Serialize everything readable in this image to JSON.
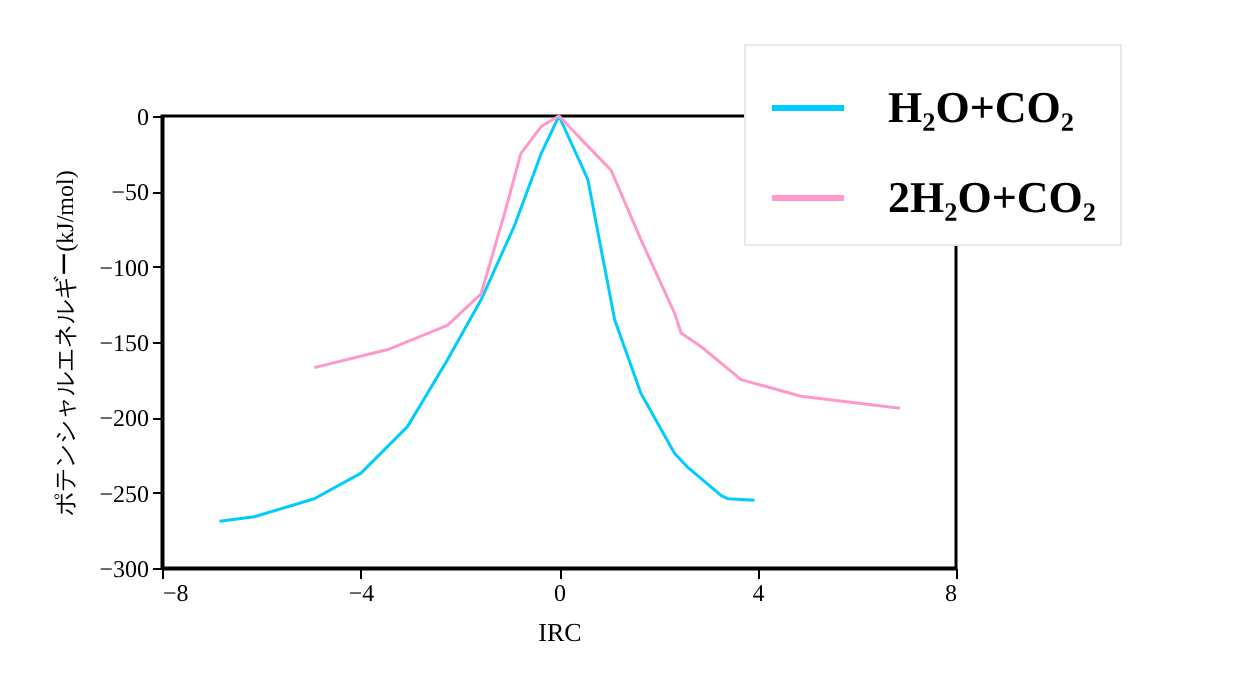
{
  "chart_data": {
    "type": "line",
    "xlabel": "IRC",
    "ylabel": "ポテンシャルエネルギー(kJ/mol)",
    "xlim": [
      -8,
      8
    ],
    "xticks": [
      -8,
      -4,
      0,
      4,
      8
    ],
    "ylim": [
      -300,
      0
    ],
    "yticks": [
      -300,
      -250,
      -200,
      -150,
      -100,
      -50,
      0
    ],
    "grid": false,
    "legend": "top right",
    "marker": "none",
    "line_style": "solid",
    "series": [
      {
        "name": "H₂O+CO₂",
        "color": "#00ccff",
        "x": [
          -6.84,
          -6.14,
          -4.93,
          -3.99,
          -3.05,
          -2.25,
          -1.57,
          -0.9,
          -0.36,
          0,
          0.58,
          1.12,
          1.65,
          2.33,
          2.59,
          3.27,
          3.4,
          3.94
        ],
        "values": [
          -269,
          -266,
          -254,
          -237,
          -206,
          -162,
          -122,
          -73,
          -25,
          0,
          -42,
          -135,
          -184,
          -224,
          -233,
          -252,
          -254,
          -255
        ]
      },
      {
        "name": "2H₂O+CO₂",
        "color": "#ff99cc",
        "x": [
          -4.93,
          -3.45,
          -2.25,
          -1.57,
          -1.1,
          -0.77,
          -0.36,
          0,
          0.58,
          1.05,
          1.65,
          2.33,
          2.46,
          2.86,
          3.67,
          4.88,
          6.87
        ],
        "values": [
          -167,
          -155,
          -139,
          -118,
          -65,
          -25,
          -7,
          0,
          -20,
          -36,
          -82,
          -131,
          -144,
          -153,
          -175,
          -186,
          -194
        ]
      }
    ]
  }
}
